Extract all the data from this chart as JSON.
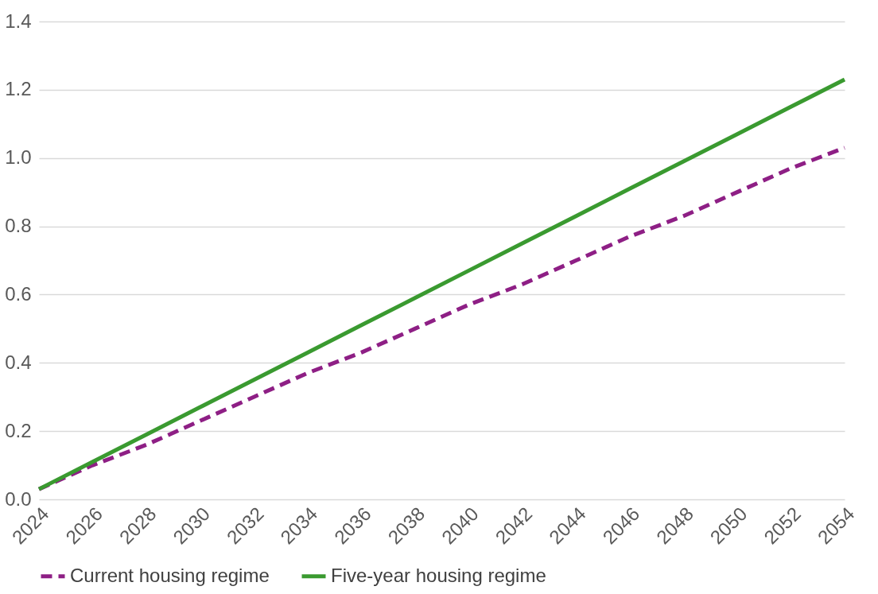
{
  "chart_data": {
    "type": "line",
    "x": [
      2024,
      2026,
      2028,
      2030,
      2032,
      2034,
      2036,
      2038,
      2040,
      2042,
      2044,
      2046,
      2048,
      2050,
      2052,
      2054
    ],
    "series": [
      {
        "name": "Current housing regime",
        "color": "#8e1f85",
        "line_style": "dashed",
        "values": [
          0.03,
          0.1,
          0.16,
          0.23,
          0.3,
          0.37,
          0.43,
          0.5,
          0.57,
          0.63,
          0.7,
          0.77,
          0.83,
          0.9,
          0.97,
          1.03
        ]
      },
      {
        "name": "Five-year housing regime",
        "color": "#3a9a30",
        "line_style": "solid",
        "values": [
          0.03,
          0.11,
          0.19,
          0.27,
          0.35,
          0.43,
          0.51,
          0.59,
          0.67,
          0.75,
          0.83,
          0.91,
          0.99,
          1.07,
          1.15,
          1.23
        ]
      }
    ],
    "xlim": [
      2024,
      2054
    ],
    "xticks": [
      2024,
      2026,
      2028,
      2030,
      2032,
      2034,
      2036,
      2038,
      2040,
      2042,
      2044,
      2046,
      2048,
      2050,
      2052,
      2054
    ],
    "ylim": [
      0,
      1.4
    ],
    "yticks": [
      {
        "value": 0,
        "label": "0.0"
      },
      {
        "value": 0.2,
        "label": "0.2"
      },
      {
        "value": 0.4,
        "label": "0.4"
      },
      {
        "value": 0.6,
        "label": "0.6"
      },
      {
        "value": 0.8,
        "label": "0.8"
      },
      {
        "value": 1.0,
        "label": "1.0"
      },
      {
        "value": 1.2,
        "label": "1.2"
      },
      {
        "value": 1.4,
        "label": "1.4"
      }
    ],
    "grid": "y",
    "legend": "bottom",
    "marker": "none"
  }
}
